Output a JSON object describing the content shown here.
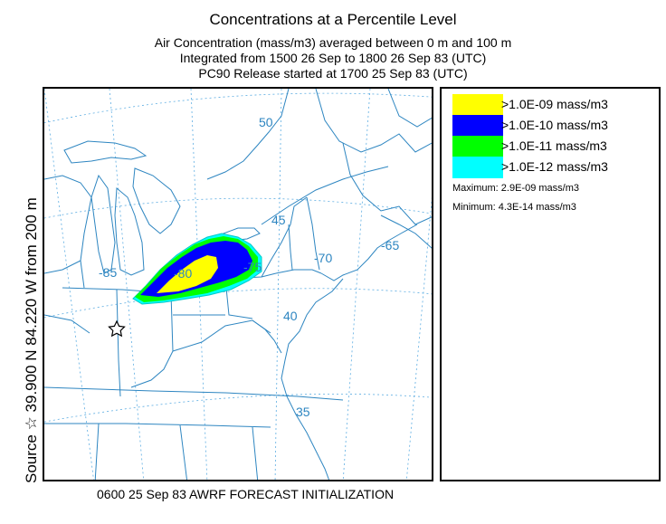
{
  "header": {
    "title": "Concentrations at a Percentile Level",
    "line1": "Air Concentration  (mass/m3) averaged between      0 m and   100 m",
    "line2": "Integrated from 1500 26 Sep to 1800 26 Sep 83 (UTC)",
    "line3": "PC90 Release started at 1700 25 Sep 83 (UTC)"
  },
  "source_label": "Source ☆  39.900  N  84.220  W    from  200 m",
  "legend": {
    "entries": [
      {
        "label": ">1.0E-09 mass/m3",
        "color": "#ffff00"
      },
      {
        "label": ">1.0E-10 mass/m3",
        "color": "#0000ff"
      },
      {
        "label": ">1.0E-11 mass/m3",
        "color": "#00ff00"
      },
      {
        "label": ">1.0E-12 mass/m3",
        "color": "#00ffff"
      }
    ],
    "maximum": "Maximum:  2.9E-09 mass/m3",
    "minimum": "Minimum:  4.3E-14 mass/m3"
  },
  "map": {
    "grid_labels": [
      "50",
      "45",
      "40",
      "35",
      "-85",
      "-70",
      "-65",
      "-75",
      "-80"
    ],
    "boundary_color": "#2e86c1",
    "grid_color": "#5dade2",
    "source_marker": "star-icon"
  },
  "footer": "0600 25 Sep 83 AWRF FORECAST INITIALIZATION"
}
